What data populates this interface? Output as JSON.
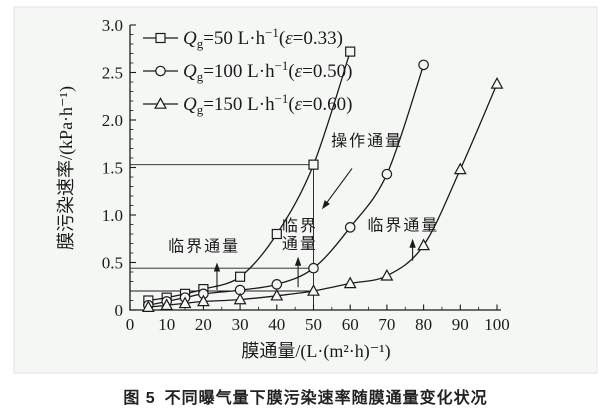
{
  "page": {
    "outer_bg": "#ffffff",
    "panel_bg": "#f5f7f5",
    "panel_border": "#dfe5e0",
    "ink": "#1b1b1b"
  },
  "caption": {
    "prefix": "图 5",
    "text": "不同曝气量下膜污染速率随膜通量变化状况"
  },
  "chart_data": {
    "type": "line",
    "title": "",
    "xlabel": "膜通量/(L·(m²·h)⁻¹)",
    "ylabel": "膜污染速率/(kPa·h⁻¹)",
    "xlim": [
      0,
      100
    ],
    "ylim": [
      0,
      3.0
    ],
    "x_major_ticks": [
      0,
      10,
      20,
      30,
      40,
      50,
      60,
      70,
      80,
      90,
      100
    ],
    "x_tick_labels": [
      "0",
      "10",
      "20",
      "30",
      "40",
      "50",
      "60",
      "70",
      "80",
      "90",
      "100"
    ],
    "x_minor_step": 5,
    "y_major_ticks": [
      0,
      0.5,
      1.0,
      1.5,
      2.0,
      2.5,
      3.0
    ],
    "y_tick_labels": [
      "0",
      "0.5",
      "1.0",
      "1.5",
      "2.0",
      "2.5",
      "3.0"
    ],
    "y_minor_step": 0.1,
    "grid": false,
    "legend_position": "inside-top-left",
    "series": [
      {
        "name": "Qg=50 L·h⁻¹(ε=0.33)",
        "marker": "square",
        "label_parts": [
          [
            "i",
            "Q"
          ],
          [
            "sub",
            "g"
          ],
          [
            "n",
            "=50 L·h"
          ],
          [
            "sup",
            "−1"
          ],
          [
            "n",
            "("
          ],
          [
            "i",
            "ε"
          ],
          [
            "n",
            "=0.33)"
          ]
        ],
        "x": [
          5,
          10,
          15,
          20,
          30,
          40,
          50,
          60
        ],
        "y": [
          0.1,
          0.13,
          0.17,
          0.22,
          0.35,
          0.8,
          1.53,
          2.72
        ]
      },
      {
        "name": "Qg=100 L·h⁻¹(ε=0.50)",
        "marker": "circle",
        "label_parts": [
          [
            "i",
            "Q"
          ],
          [
            "sub",
            "g"
          ],
          [
            "n",
            "=100 L·h"
          ],
          [
            "sup",
            "−1"
          ],
          [
            "n",
            "("
          ],
          [
            "i",
            "ε"
          ],
          [
            "n",
            "=0.50)"
          ]
        ],
        "x": [
          5,
          10,
          15,
          20,
          30,
          40,
          50,
          60,
          70,
          80
        ],
        "y": [
          0.05,
          0.09,
          0.13,
          0.17,
          0.21,
          0.27,
          0.44,
          0.87,
          1.43,
          2.58
        ]
      },
      {
        "name": "Qg=150 L·h⁻¹(ε=0.60)",
        "marker": "triangle",
        "label_parts": [
          [
            "i",
            "Q"
          ],
          [
            "sub",
            "g"
          ],
          [
            "n",
            "=150 L·h"
          ],
          [
            "sup",
            "−1"
          ],
          [
            "n",
            "("
          ],
          [
            "i",
            "ε"
          ],
          [
            "n",
            "=0.60)"
          ]
        ],
        "x": [
          5,
          10,
          15,
          20,
          30,
          40,
          50,
          60,
          70,
          80,
          90,
          100
        ],
        "y": [
          0.03,
          0.05,
          0.07,
          0.09,
          0.11,
          0.15,
          0.2,
          0.28,
          0.36,
          0.68,
          1.48,
          2.38
        ]
      }
    ],
    "reference_lines": {
      "horizontal": [
        {
          "y": 1.53,
          "x_from": 0,
          "x_to": 50
        },
        {
          "y": 0.44,
          "x_from": 0,
          "x_to": 50
        },
        {
          "y": 0.2,
          "x_from": 0,
          "x_to": 50
        }
      ],
      "vertical": [
        {
          "x": 50,
          "y_from": 0,
          "y_to": 1.53
        }
      ]
    },
    "annotations": [
      {
        "id": "operating-flux",
        "lines": [
          "操作通量"
        ],
        "x": 64.6,
        "y": 1.79,
        "arrow": {
          "x1": 60.5,
          "y1": 1.49,
          "x2": 52.3,
          "y2": 1.06
        }
      },
      {
        "id": "critical-flux-qg50",
        "lines": [
          "临界通量"
        ],
        "x": 20.2,
        "y": 0.68,
        "arrow": {
          "x1": 23.7,
          "y1": 0.21,
          "x2": 23.7,
          "y2": 0.5
        }
      },
      {
        "id": "critical-flux-qg100",
        "lines": [
          "临界",
          "通量"
        ],
        "x": 46.3,
        "y": 0.8,
        "arrow": {
          "x1": 45.8,
          "y1": 0.24,
          "x2": 45.8,
          "y2": 0.56
        }
      },
      {
        "id": "critical-flux-qg150",
        "lines": [
          "临界通量"
        ],
        "x": 74.5,
        "y": 0.9,
        "arrow": {
          "x1": 77.0,
          "y1": 0.52,
          "x2": 77.0,
          "y2": 0.75
        }
      }
    ]
  }
}
